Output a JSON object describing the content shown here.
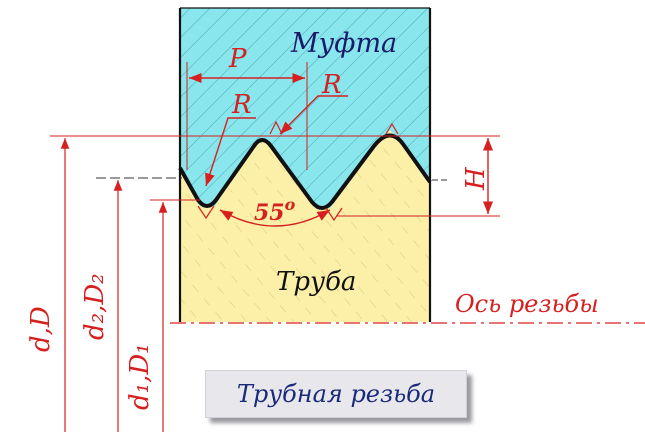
{
  "labels": {
    "coupling": "Муфта",
    "pipe": "Труба",
    "pitch": "P",
    "radius_left": "R",
    "radius_right": "R",
    "height": "H",
    "angle_num": "55",
    "angle_deg": "o",
    "axis": "Ось резьбы",
    "d_major": "d,D",
    "d_mean": "d₂,D₂",
    "d_minor": "d₁,D₁",
    "caption": "Трубная резьба"
  },
  "colors": {
    "coupling_fill": "#88e6ec",
    "pipe_fill": "#fcf0a8",
    "dimension": "#d62020",
    "outline": "#111111",
    "caption_text": "#1a2a7a"
  }
}
